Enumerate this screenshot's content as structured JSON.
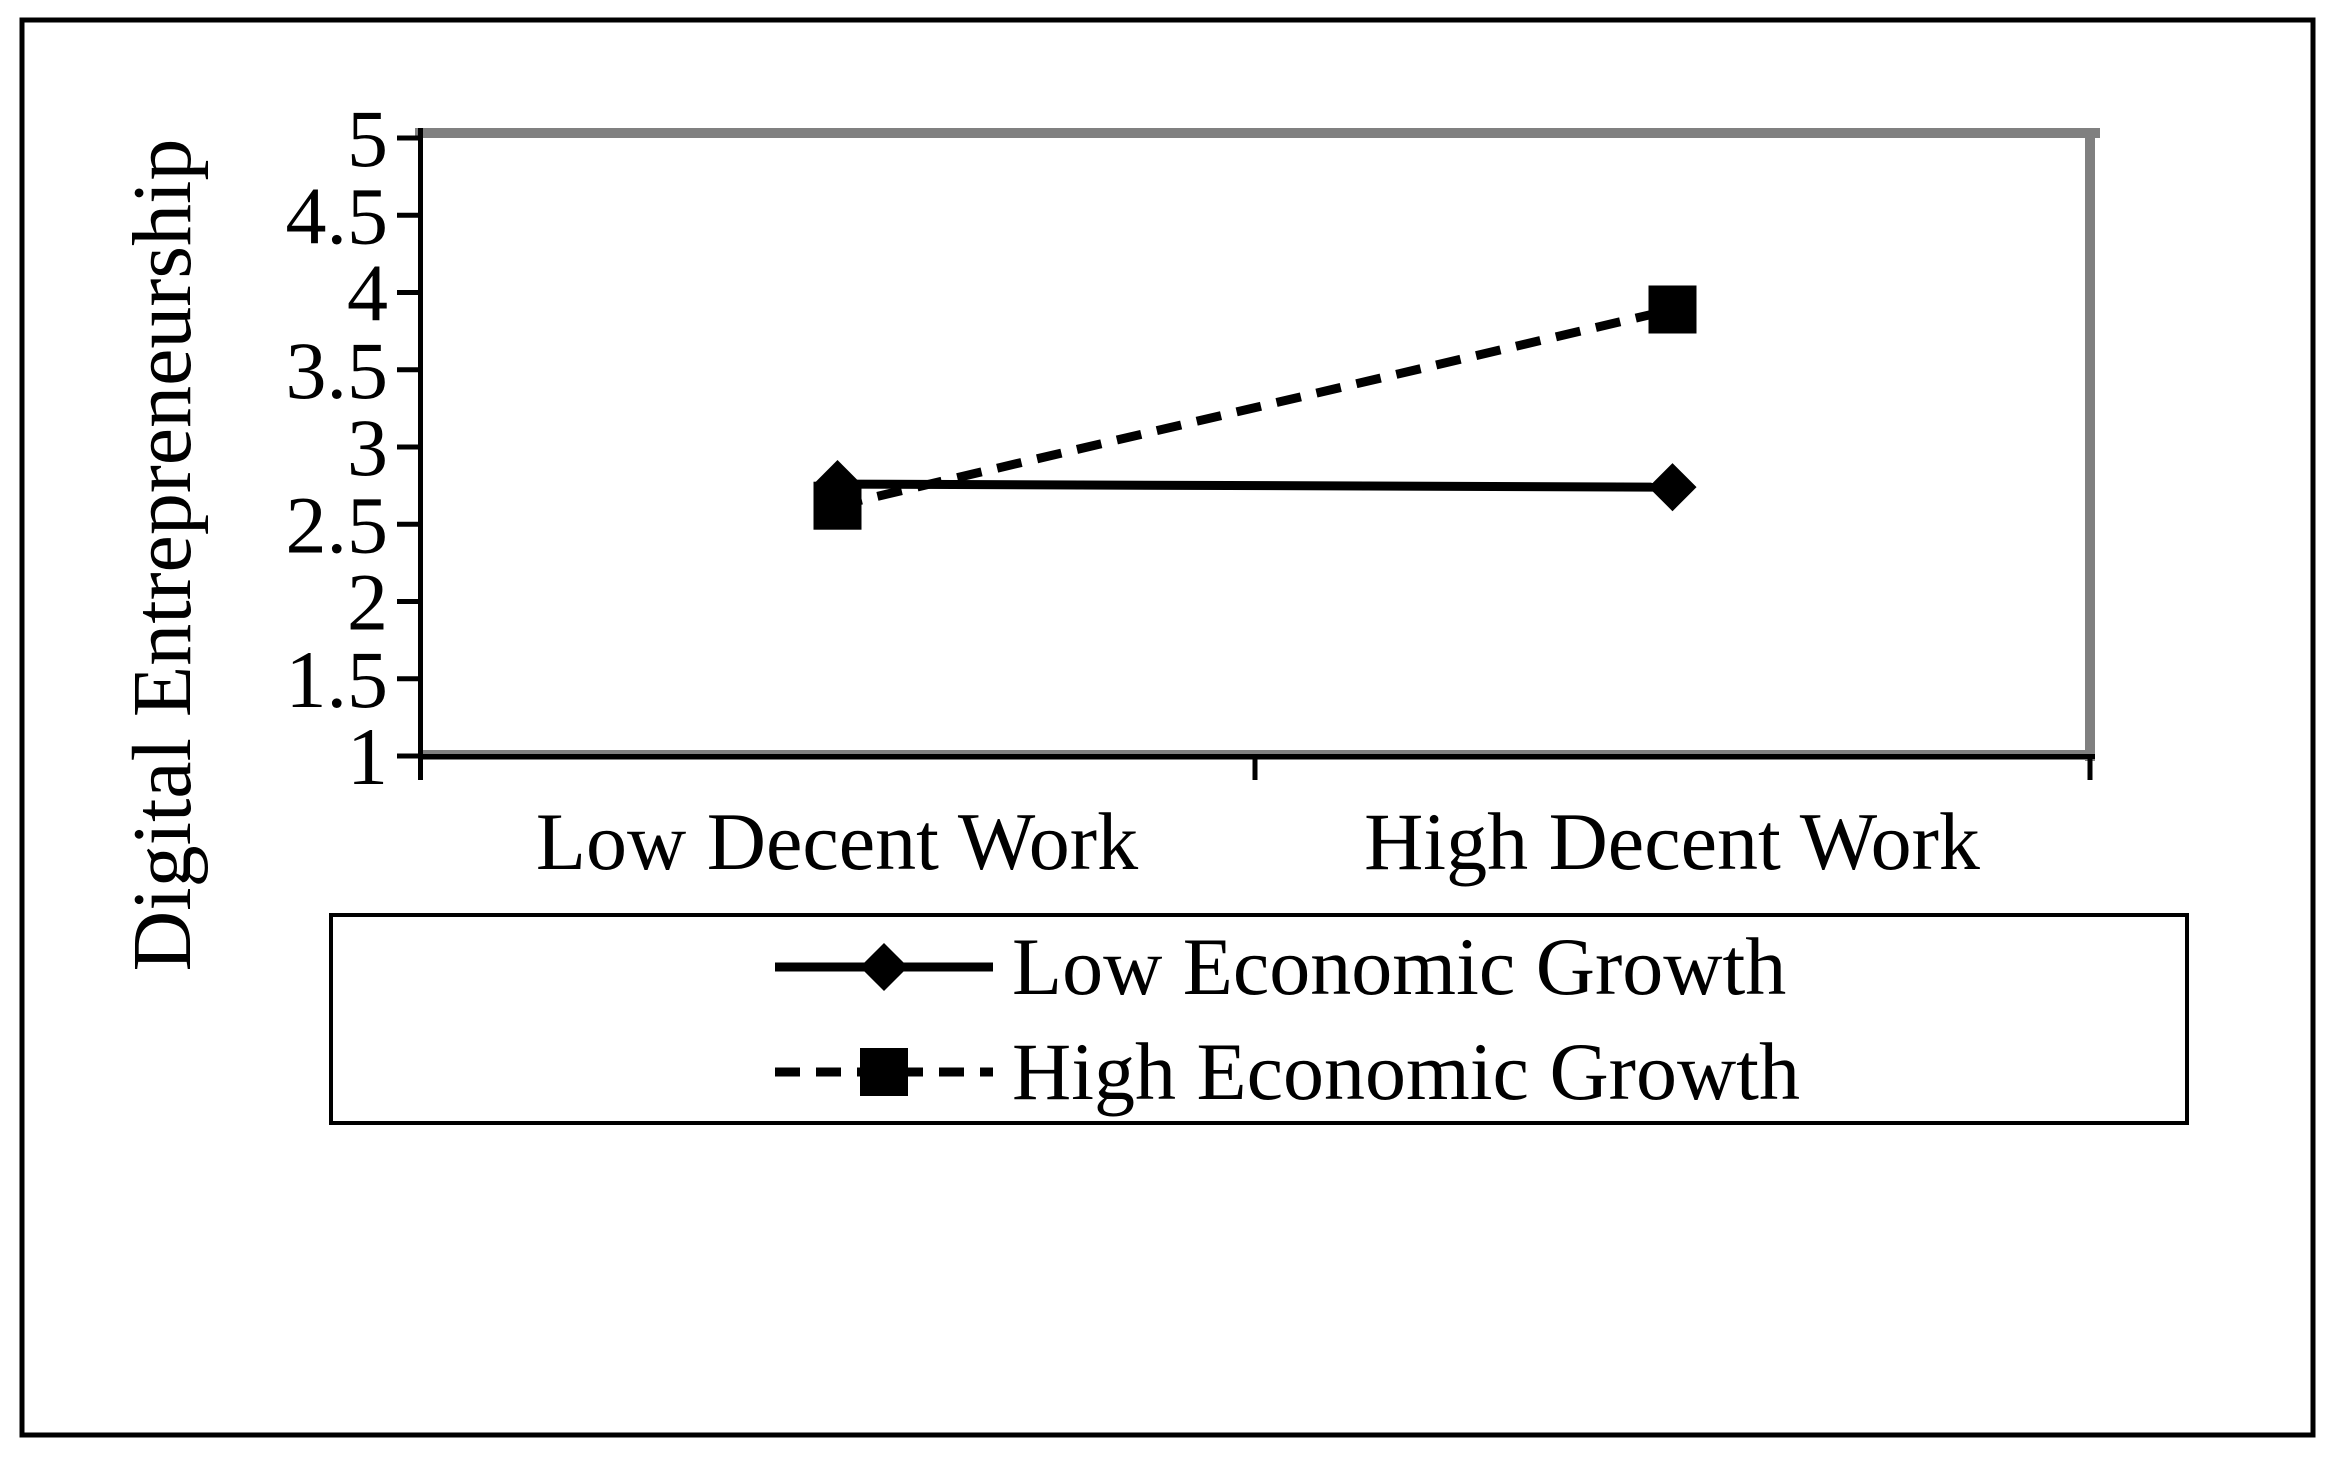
{
  "chart_data": {
    "type": "line",
    "title": "",
    "categories": [
      "Low Decent Work",
      "High Decent Work"
    ],
    "series": [
      {
        "name": "Low Economic Growth",
        "values": [
          2.76,
          2.74
        ],
        "marker": "diamond",
        "line_style": "solid",
        "color": "#000000"
      },
      {
        "name": "High Economic Growth",
        "values": [
          2.62,
          3.89
        ],
        "marker": "square",
        "line_style": "dashed",
        "color": "#000000"
      }
    ],
    "xlabel": "",
    "ylabel": "Digital Entrepreneurship",
    "ylim": [
      1,
      5
    ],
    "ytick_interval": 0.5,
    "ytick_labels": [
      "5",
      "4.5",
      "4",
      "3.5",
      "3",
      "2.5",
      "2",
      "1.5",
      "1"
    ],
    "grid": false,
    "legend_position": "bottom-center",
    "colors": {
      "series_color": "#000000",
      "plot_wall_border": "#808080",
      "axis_color": "#000000",
      "background": "#ffffff"
    }
  }
}
